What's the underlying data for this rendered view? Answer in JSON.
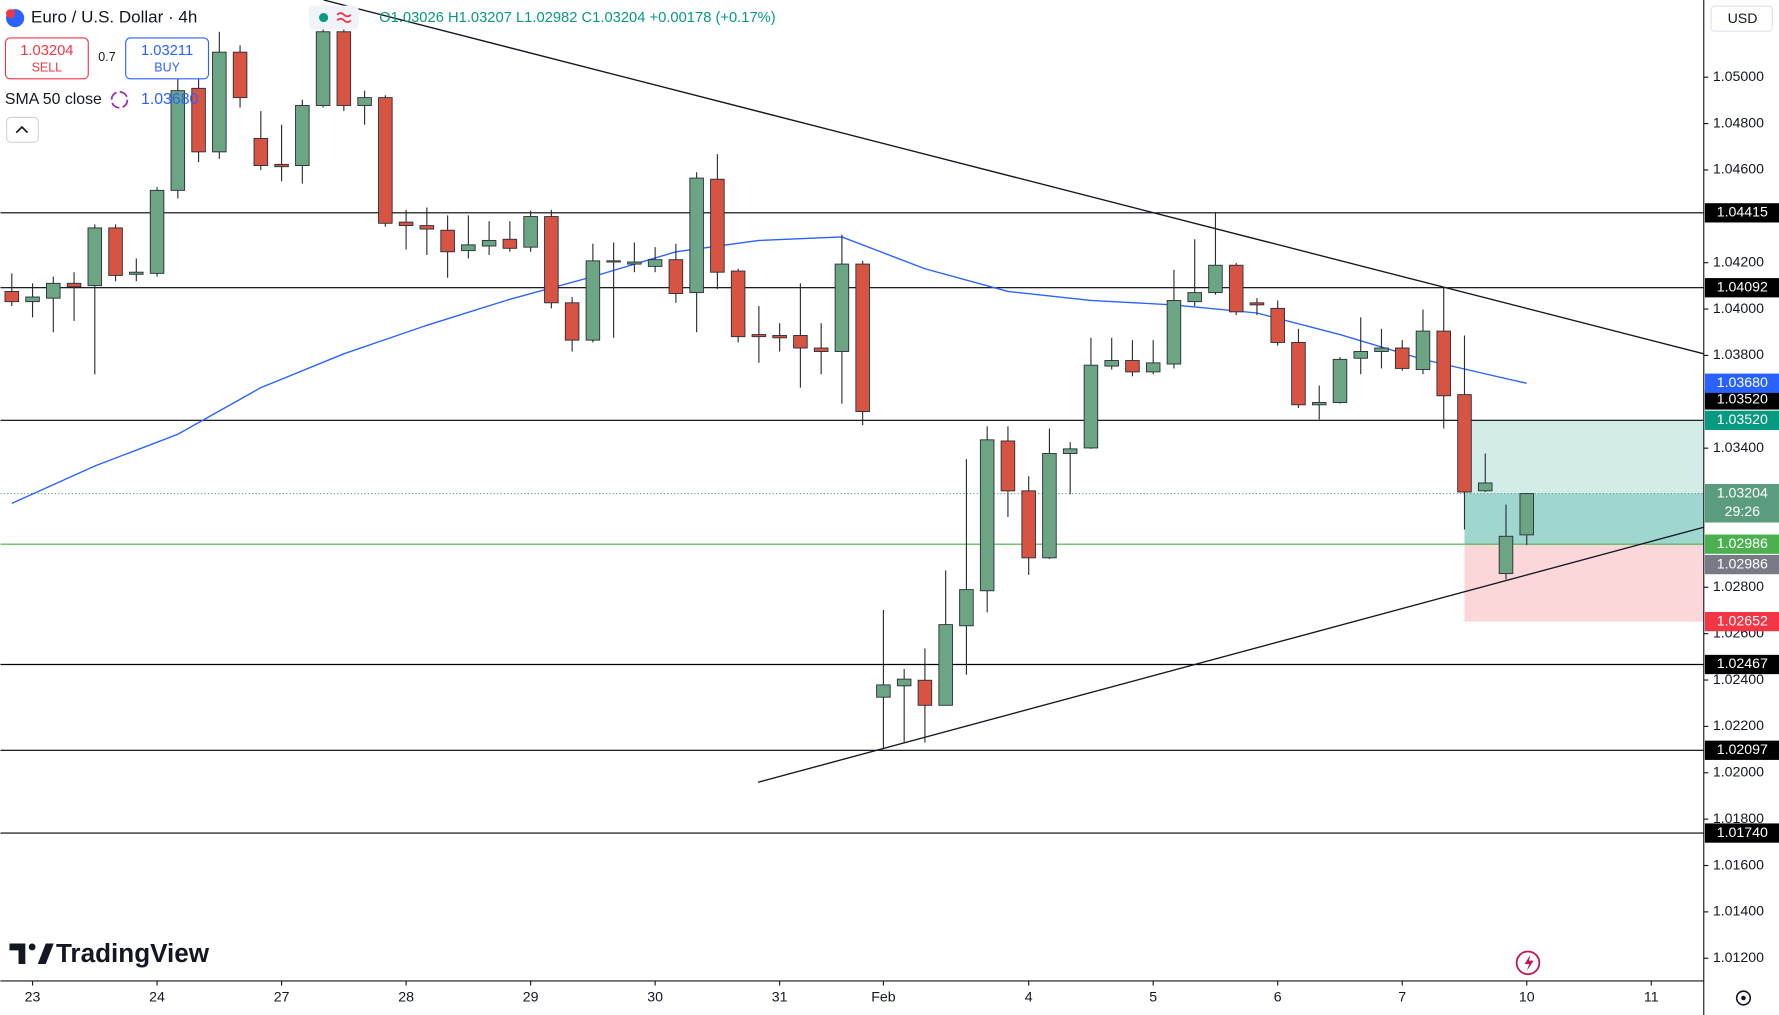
{
  "header": {
    "symbol": "Euro / U.S. Dollar · 4h",
    "ohlc": "O1.03026 H1.03207 L1.02982 C1.03204 +0.00178 (+0.17%)",
    "sell_price": "1.03204",
    "sell": "SELL",
    "spread": "0.7",
    "buy_price": "1.03211",
    "buy": "BUY",
    "currency": "USD",
    "brand": "TradingView"
  },
  "chart_data": {
    "type": "candlestick",
    "x": [
      0,
      1,
      2,
      3,
      4,
      5,
      6,
      7,
      8,
      9,
      10,
      11,
      12,
      13,
      14,
      15,
      16,
      17,
      18,
      19,
      20,
      21,
      22,
      23,
      24,
      25,
      26,
      27,
      28,
      29,
      30,
      31,
      32,
      33,
      34,
      35,
      36,
      37,
      38,
      39,
      40,
      41,
      42,
      43,
      44,
      45,
      46,
      47,
      48,
      49,
      50,
      51,
      52,
      53,
      54,
      55,
      56,
      57,
      58,
      59,
      60,
      61,
      62,
      63,
      64,
      65,
      66,
      67,
      68,
      69,
      70,
      71,
      72,
      73
    ],
    "open": [
      1.04076,
      1.04032,
      1.04047,
      1.04111,
      1.04101,
      1.0435,
      1.0415,
      1.04154,
      1.04512,
      1.04952,
      1.04678,
      1.05108,
      1.04736,
      1.04624,
      1.04619,
      1.04878,
      1.05196,
      1.04878,
      1.04912,
      1.04375,
      1.0436,
      1.0434,
      1.04252,
      1.04272,
      1.04301,
      1.04267,
      1.04399,
      1.04027,
      1.03866,
      1.04203,
      1.04194,
      1.04184,
      1.04213,
      1.04071,
      1.0456,
      1.04164,
      1.0389,
      1.03886,
      1.03886,
      1.03832,
      1.03817,
      1.04194,
      1.02326,
      1.02375,
      1.02399,
      1.02291,
      1.02634,
      1.02785,
      1.03431,
      1.03216,
      1.02927,
      1.03377,
      1.03401,
      1.03754,
      1.03778,
      1.03729,
      1.03763,
      1.04032,
      1.04071,
      1.04189,
      1.04027,
      1.04003,
      1.03856,
      1.03587,
      1.03597,
      1.03788,
      1.03817,
      1.03832,
      1.03739,
      1.03905,
      1.03631,
      1.03216,
      1.02859,
      1.03026
    ],
    "high": [
      1.04154,
      1.04111,
      1.0414,
      1.04159,
      1.04365,
      1.04365,
      1.04218,
      1.04526,
      1.05,
      1.05,
      1.05196,
      1.05137,
      1.04854,
      1.04795,
      1.04903,
      1.05309,
      1.05235,
      1.04942,
      1.04922,
      1.04428,
      1.04438,
      1.04404,
      1.04404,
      1.04379,
      1.04379,
      1.04424,
      1.04428,
      1.04052,
      1.04282,
      1.04287,
      1.04287,
      1.04267,
      1.04282,
      1.0459,
      1.04668,
      1.04174,
      1.04013,
      1.03939,
      1.04111,
      1.03939,
      1.04321,
      1.04208,
      1.02702,
      1.02448,
      1.02536,
      1.02873,
      1.03353,
      1.03494,
      1.03494,
      1.03279,
      1.03485,
      1.03426,
      1.03876,
      1.03876,
      1.03866,
      1.03866,
      1.04169,
      1.04301,
      1.04419,
      1.04199,
      1.04047,
      1.04037,
      1.03915,
      1.0367,
      1.03793,
      1.03964,
      1.03915,
      1.03866,
      1.03998,
      1.04096,
      1.03886,
      1.03377,
      1.03157,
      1.03207
    ],
    "low": [
      1.04013,
      1.03964,
      1.039,
      1.03949,
      1.03719,
      1.0412,
      1.0412,
      1.0414,
      1.04477,
      1.04634,
      1.04648,
      1.04869,
      1.046,
      1.04551,
      1.04541,
      1.04869,
      1.04854,
      1.04795,
      1.04355,
      1.04257,
      1.04233,
      1.04135,
      1.04218,
      1.04233,
      1.04247,
      1.04247,
      1.04003,
      1.03817,
      1.03856,
      1.03876,
      1.04159,
      1.04159,
      1.04027,
      1.039,
      1.04086,
      1.03856,
      1.03768,
      1.03817,
      1.03661,
      1.03719,
      1.03592,
      1.03499,
      1.02106,
      1.0213,
      1.0213,
      1.02291,
      1.02423,
      1.02692,
      1.03103,
      1.02854,
      1.02922,
      1.03201,
      1.03397,
      1.03739,
      1.0371,
      1.03719,
      1.03744,
      1.04013,
      1.04062,
      1.03974,
      1.03974,
      1.03842,
      1.03573,
      1.03524,
      1.03592,
      1.03719,
      1.03744,
      1.03734,
      1.03719,
      1.03485,
      1.03049,
      1.03211,
      1.02834,
      1.02982
    ],
    "close": [
      1.04032,
      1.04052,
      1.04111,
      1.04096,
      1.0435,
      1.04145,
      1.04159,
      1.04512,
      1.04942,
      1.04678,
      1.05108,
      1.04912,
      1.04619,
      1.04614,
      1.04878,
      1.05196,
      1.04878,
      1.04912,
      1.0437,
      1.0436,
      1.04345,
      1.04247,
      1.04277,
      1.04296,
      1.04262,
      1.04399,
      1.04027,
      1.03866,
      1.04208,
      1.04208,
      1.04203,
      1.04213,
      1.04067,
      1.04565,
      1.04159,
      1.03881,
      1.03881,
      1.03876,
      1.03832,
      1.03817,
      1.04194,
      1.03558,
      1.02379,
      1.02404,
      1.02291,
      1.02639,
      1.0279,
      1.03436,
      1.03216,
      1.02927,
      1.03377,
      1.03397,
      1.03758,
      1.03778,
      1.03729,
      1.03768,
      1.04037,
      1.04071,
      1.04189,
      1.03988,
      1.04018,
      1.03856,
      1.03587,
      1.03597,
      1.03783,
      1.03817,
      1.03832,
      1.03744,
      1.03905,
      1.03626,
      1.03211,
      1.0325,
      1.0302,
      1.03204
    ],
    "up_color": "#6ba583",
    "down_color": "#d75442",
    "xlim": [
      -0.55,
      81.53
    ],
    "xticks": [
      {
        "value": 1,
        "label": "23"
      },
      {
        "value": 7,
        "label": "24"
      },
      {
        "value": 13,
        "label": "27"
      },
      {
        "value": 19,
        "label": "28"
      },
      {
        "value": 25,
        "label": "29"
      },
      {
        "value": 31,
        "label": "30"
      },
      {
        "value": 37,
        "label": "31"
      },
      {
        "value": 42,
        "label": "Feb"
      },
      {
        "value": 49,
        "label": "4"
      },
      {
        "value": 55,
        "label": "5"
      },
      {
        "value": 61,
        "label": "6"
      },
      {
        "value": 67,
        "label": "7"
      },
      {
        "value": 73,
        "label": "10"
      },
      {
        "value": 79,
        "label": "11"
      }
    ],
    "ylim": [
      1.01102,
      1.05333
    ],
    "yticks": [
      {
        "value": 1.05,
        "label": "1.05000"
      },
      {
        "value": 1.048,
        "label": "1.04800"
      },
      {
        "value": 1.046,
        "label": "1.04600"
      },
      {
        "value": 1.042,
        "label": "1.04200"
      },
      {
        "value": 1.04,
        "label": "1.04000"
      },
      {
        "value": 1.038,
        "label": "1.03800"
      },
      {
        "value": 1.034,
        "label": "1.03400"
      },
      {
        "value": 1.028,
        "label": "1.02800"
      },
      {
        "value": 1.026,
        "label": "1.02600"
      },
      {
        "value": 1.024,
        "label": "1.02400"
      },
      {
        "value": 1.022,
        "label": "1.02200"
      },
      {
        "value": 1.02,
        "label": "1.02000"
      },
      {
        "value": 1.018,
        "label": "1.01800"
      },
      {
        "value": 1.016,
        "label": "1.01600"
      },
      {
        "value": 1.014,
        "label": "1.01400"
      },
      {
        "value": 1.012,
        "label": "1.01200"
      }
    ],
    "grid": false,
    "sma": {
      "name": "SMA 50 close",
      "color": "#2962ff",
      "x": [
        0,
        4,
        8,
        12,
        16,
        20,
        24,
        28,
        32,
        36,
        40,
        44,
        48,
        52,
        56,
        60,
        64,
        68,
        72,
        73
      ],
      "values": [
        1.03162,
        1.03323,
        1.0346,
        1.03661,
        1.03807,
        1.0393,
        1.04042,
        1.0414,
        1.04247,
        1.04296,
        1.04311,
        1.04174,
        1.04076,
        1.04037,
        1.04018,
        1.03983,
        1.0389,
        1.03783,
        1.037,
        1.0368
      ],
      "last": {
        "value": 1.0368,
        "label": "1.03680"
      }
    },
    "levels": [
      1.04415,
      1.04092,
      {
        "value": 1.0352,
        "label": "1.03520"
      },
      1.02467,
      1.02097,
      {
        "value": 1.0174,
        "label": "1.01740"
      }
    ],
    "level_color": "#000000",
    "trendlines": [
      {
        "x": [
          15.03,
          81.53
        ],
        "values": [
          1.05333,
          1.03807
        ]
      },
      {
        "x": [
          35.96,
          81.53
        ],
        "values": [
          1.01959,
          1.03059
        ]
      }
    ],
    "position": {
      "start": 70,
      "target": {
        "value": 1.0352,
        "label": "1.03520"
      },
      "entry": 1.02986,
      "stop": 1.02652,
      "target_color": "#089981",
      "entry_color": "#4caf50",
      "stop_color": "#f23645"
    },
    "last_price": 1.03204,
    "last_price_color": "#5b9c7e",
    "countdown": "29:26",
    "marker": 1.02986,
    "marker_color": "#787b86"
  }
}
